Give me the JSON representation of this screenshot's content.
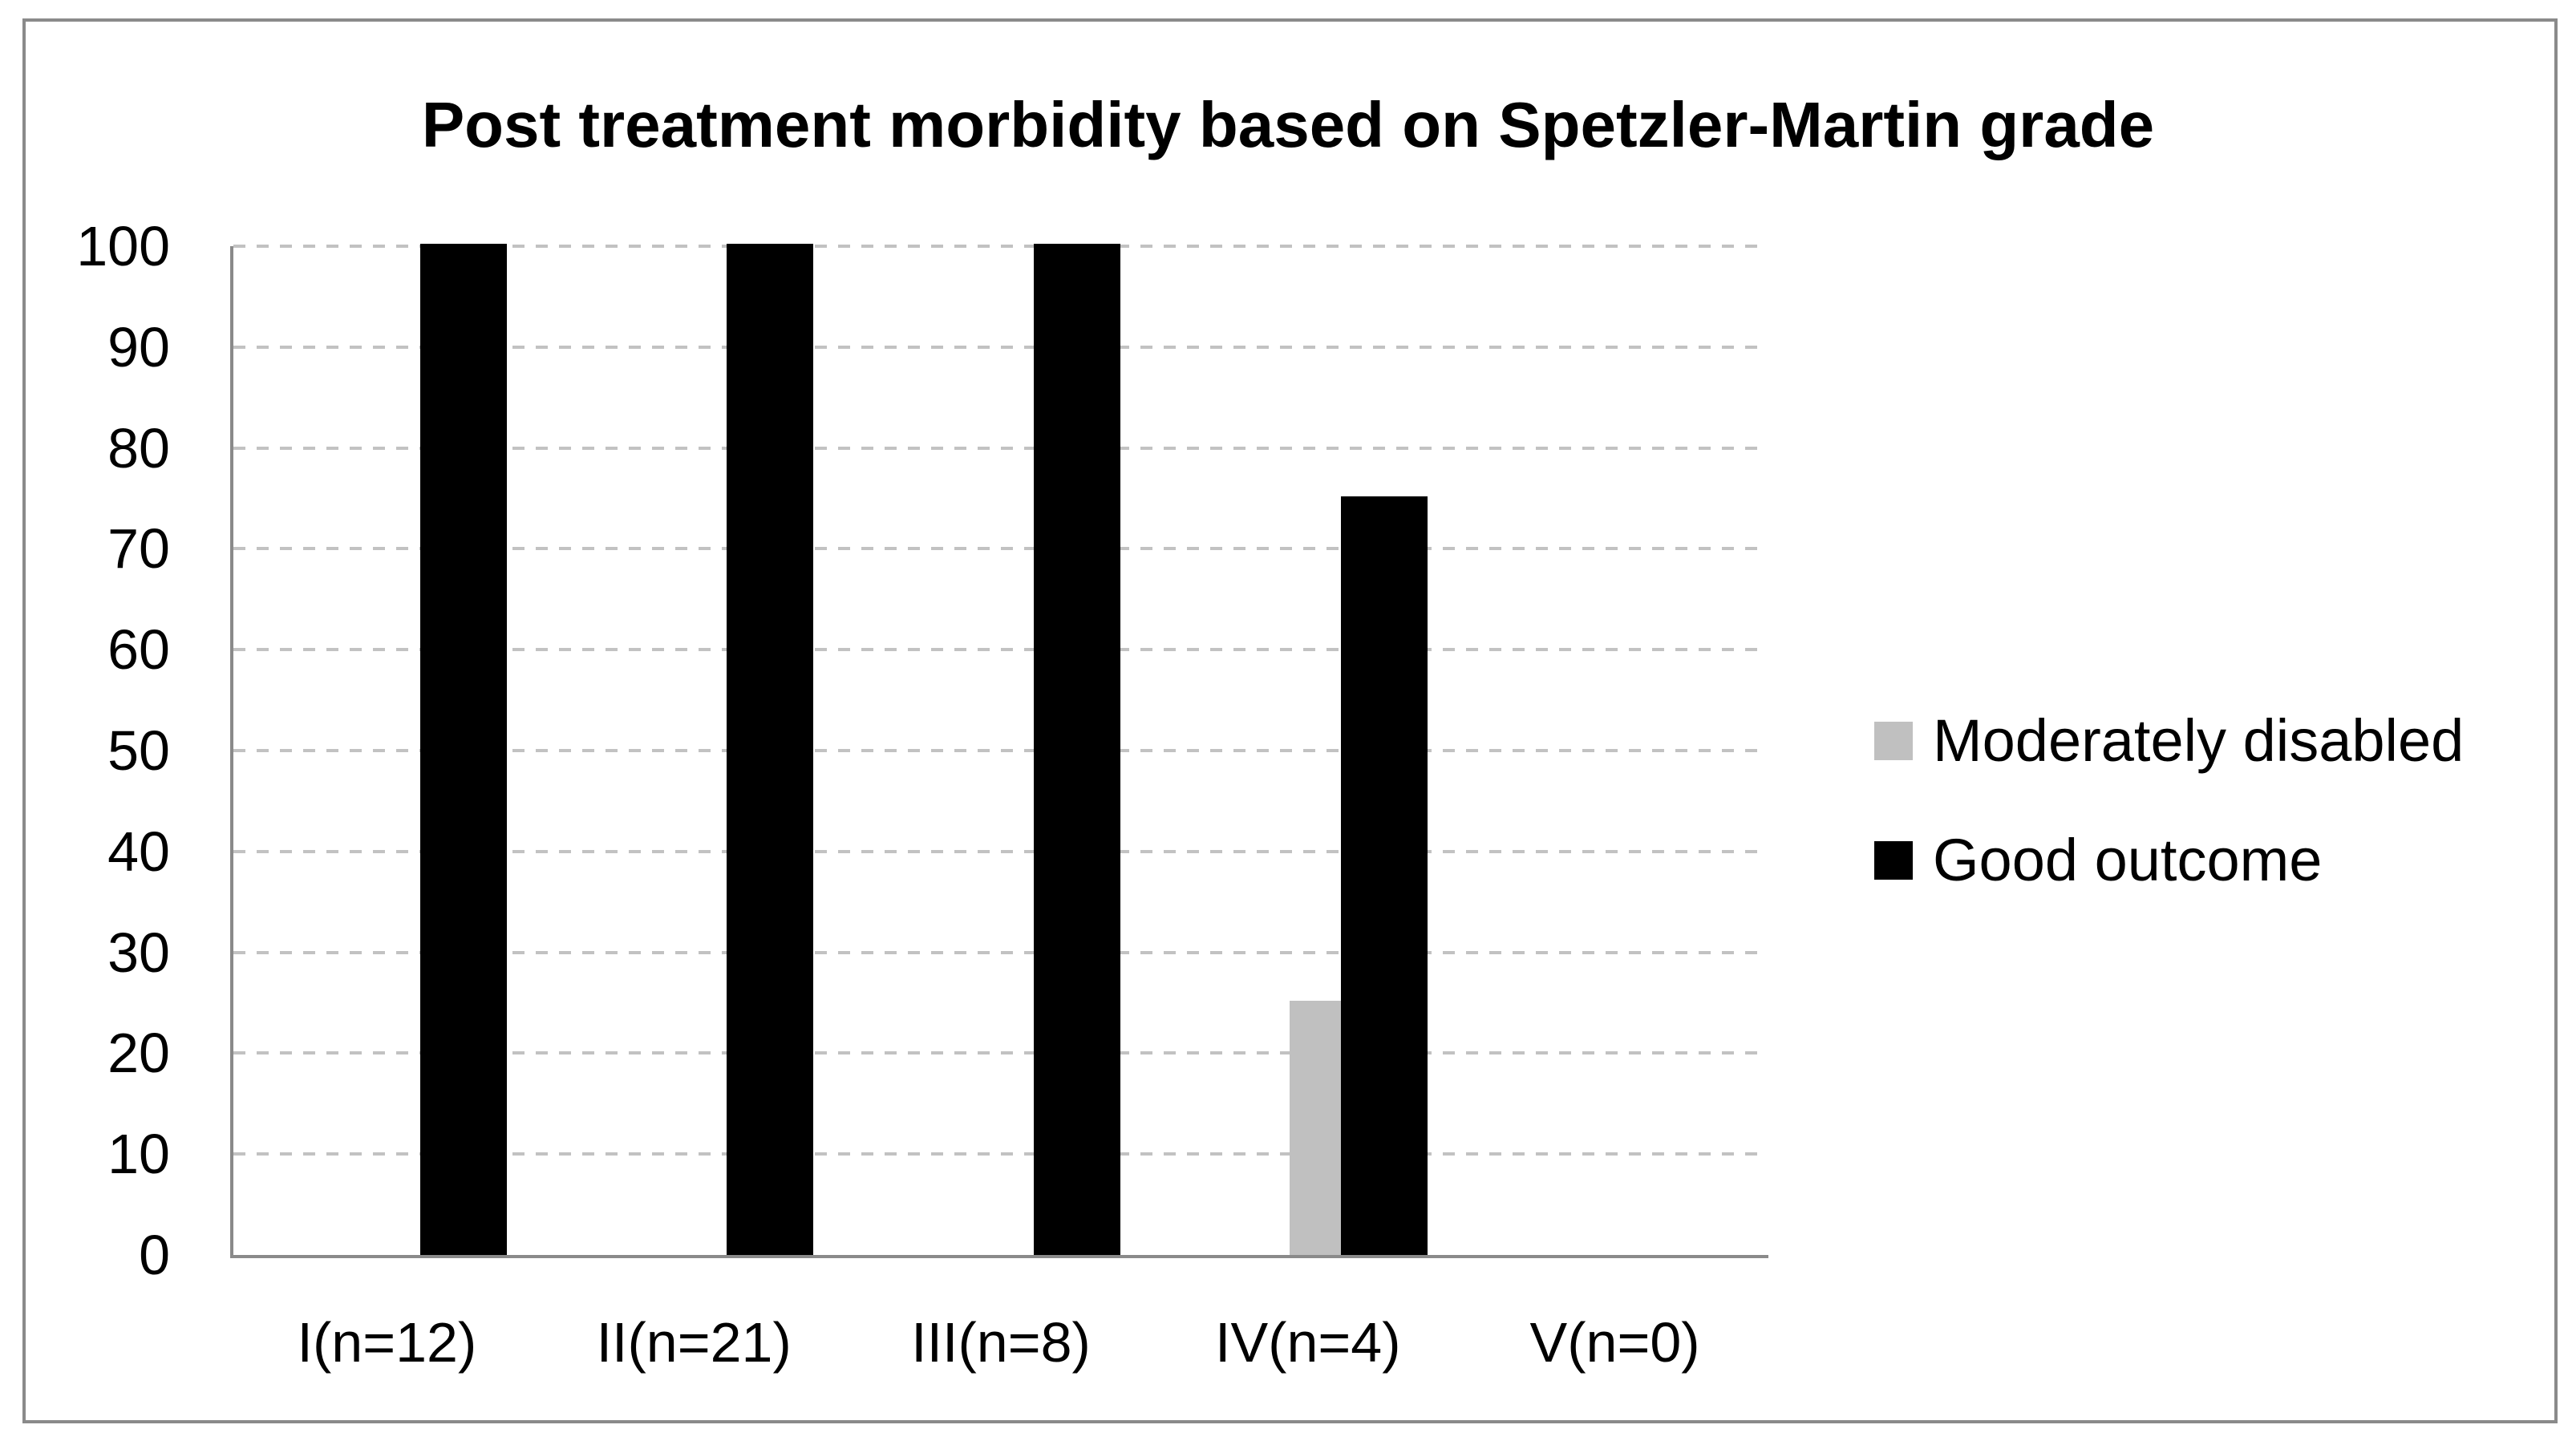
{
  "chart_data": {
    "type": "bar",
    "title": "Post treatment morbidity based on Spetzler-Martin grade",
    "categories": [
      "I(n=12)",
      "II(n=21)",
      "III(n=8)",
      "IV(n=4)",
      "V(n=0)"
    ],
    "series": [
      {
        "name": "Moderately disabled",
        "color": "#C0C0C0",
        "values": [
          0,
          0,
          0,
          25,
          0
        ]
      },
      {
        "name": "Good outcome",
        "color": "#000000",
        "values": [
          100,
          100,
          100,
          75,
          0
        ]
      }
    ],
    "xlabel": "",
    "ylabel": "",
    "ylim": [
      0,
      100
    ],
    "yticks": [
      0,
      10,
      20,
      30,
      40,
      50,
      60,
      70,
      80,
      90,
      100
    ],
    "grid": "horizontal-dashed",
    "legend_position": "right"
  },
  "colors": {
    "background": "#FFFFFF",
    "frame_border": "#8A8A8A",
    "axis_line": "#8A8A8A",
    "gridline": "#C2C2C2",
    "text": "#000000"
  }
}
